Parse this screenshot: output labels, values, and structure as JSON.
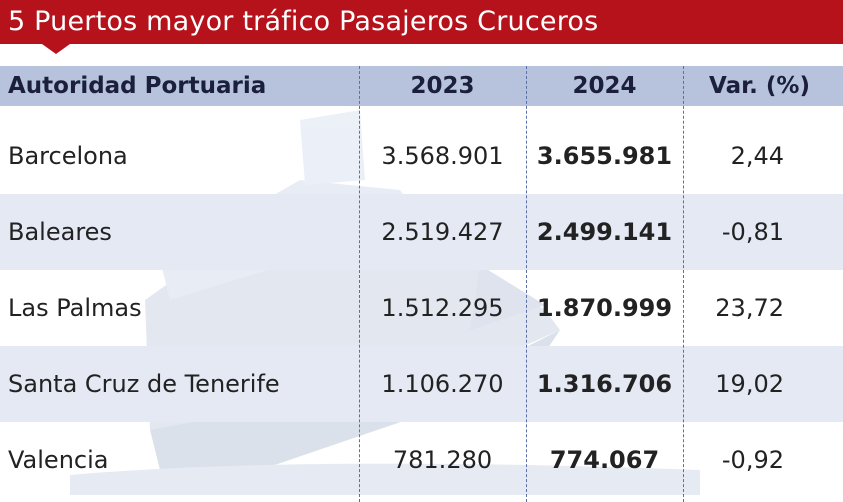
{
  "title": "5 Puertos mayor tráfico Pasajeros Cruceros",
  "colors": {
    "title_bg": "#b5121b",
    "header_bg": "#b7c3dc",
    "band_bg": "#e4e9f4",
    "divider": "#5a6fa8"
  },
  "table": {
    "headers": {
      "name": "Autoridad Portuaria",
      "y2023": "2023",
      "y2024": "2024",
      "var": "Var. (%)"
    },
    "rows": [
      {
        "name": "Barcelona",
        "y2023": "3.568.901",
        "y2024": "3.655.981",
        "var": "2,44"
      },
      {
        "name": "Baleares",
        "y2023": "2.519.427",
        "y2024": "2.499.141",
        "var": "-0,81"
      },
      {
        "name": "Las Palmas",
        "y2023": "1.512.295",
        "y2024": "1.870.999",
        "var": "23,72"
      },
      {
        "name": "Santa Cruz de Tenerife",
        "y2023": "1.106.270",
        "y2024": "1.316.706",
        "var": "19,02"
      },
      {
        "name": "Valencia",
        "y2023": "781.280",
        "y2024": "774.067",
        "var": "-0,92"
      }
    ]
  },
  "chart_data": {
    "type": "table",
    "title": "5 Puertos mayor tráfico Pasajeros Cruceros",
    "columns": [
      "Autoridad Portuaria",
      "2023",
      "2024",
      "Var. (%)"
    ],
    "rows": [
      [
        "Barcelona",
        3568901,
        3655981,
        2.44
      ],
      [
        "Baleares",
        2519427,
        2499141,
        -0.81
      ],
      [
        "Las Palmas",
        1512295,
        1870999,
        23.72
      ],
      [
        "Santa Cruz de Tenerife",
        1106270,
        1316706,
        19.02
      ],
      [
        "Valencia",
        781280,
        774067,
        -0.92
      ]
    ]
  },
  "watermark_icon": "cruise-ship-icon"
}
